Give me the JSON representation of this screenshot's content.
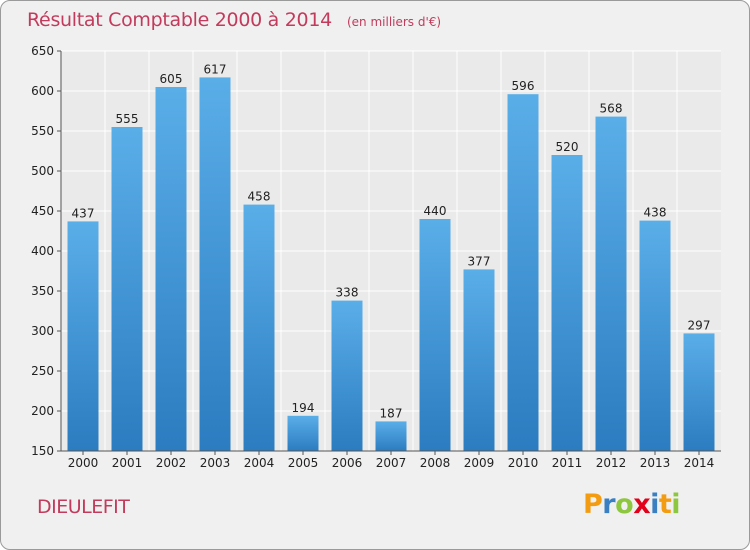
{
  "header": {
    "title": "Résultat Comptable 2000 à 2014",
    "subtitle": "(en milliers d'€)"
  },
  "footer": {
    "town": "DIEULEFIT",
    "logo": {
      "text": "Proxiti",
      "letters": [
        {
          "ch": "P",
          "color": "#f39c12"
        },
        {
          "ch": "r",
          "color": "#3a7fc1"
        },
        {
          "ch": "o",
          "color": "#8dc63f"
        },
        {
          "ch": "x",
          "color": "#e2001a"
        },
        {
          "ch": "i",
          "color": "#3a7fc1"
        },
        {
          "ch": "t",
          "color": "#f39c12"
        },
        {
          "ch": "i",
          "color": "#8dc63f"
        }
      ]
    }
  },
  "colors": {
    "bar_top": "#5aaee8",
    "bar_bottom": "#2b7cc0",
    "grid": "#ffffff",
    "plot_bg": "#eaeaea",
    "accent": "#c23b5c"
  },
  "chart_data": {
    "type": "bar",
    "categories": [
      "2000",
      "2001",
      "2002",
      "2003",
      "2004",
      "2005",
      "2006",
      "2007",
      "2008",
      "2009",
      "2010",
      "2011",
      "2012",
      "2013",
      "2014"
    ],
    "values": [
      437,
      555,
      605,
      617,
      458,
      194,
      338,
      187,
      440,
      377,
      596,
      520,
      568,
      438,
      297
    ],
    "ylim": [
      150,
      650
    ],
    "yticks": [
      150,
      200,
      250,
      300,
      350,
      400,
      450,
      500,
      550,
      600,
      650
    ],
    "grid": true,
    "data_labels": true
  }
}
